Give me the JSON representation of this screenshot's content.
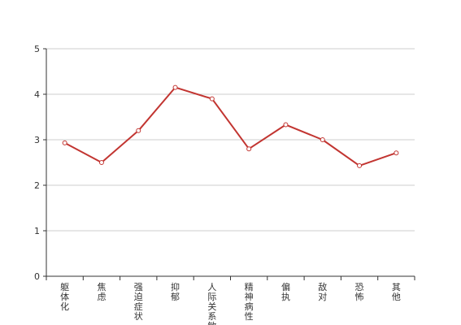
{
  "chart_data": {
    "type": "line",
    "categories": [
      "躯体化",
      "焦虑",
      "强迫症状",
      "抑郁",
      "人际关系敏感",
      "精神病性",
      "偏执",
      "敌对",
      "恐怖",
      "其他"
    ],
    "series": [
      {
        "values": [
          2.93,
          2.5,
          3.2,
          4.15,
          3.9,
          2.8,
          3.33,
          3.0,
          2.43,
          2.71
        ]
      }
    ],
    "ylim": [
      0,
      5
    ],
    "yticks": [
      0,
      1,
      2,
      3,
      4,
      5
    ],
    "grid": true,
    "colors": {
      "line": "#c23531",
      "grid": "#cccccc",
      "axis": "#333333",
      "marker_fill": "#ffffff"
    }
  }
}
